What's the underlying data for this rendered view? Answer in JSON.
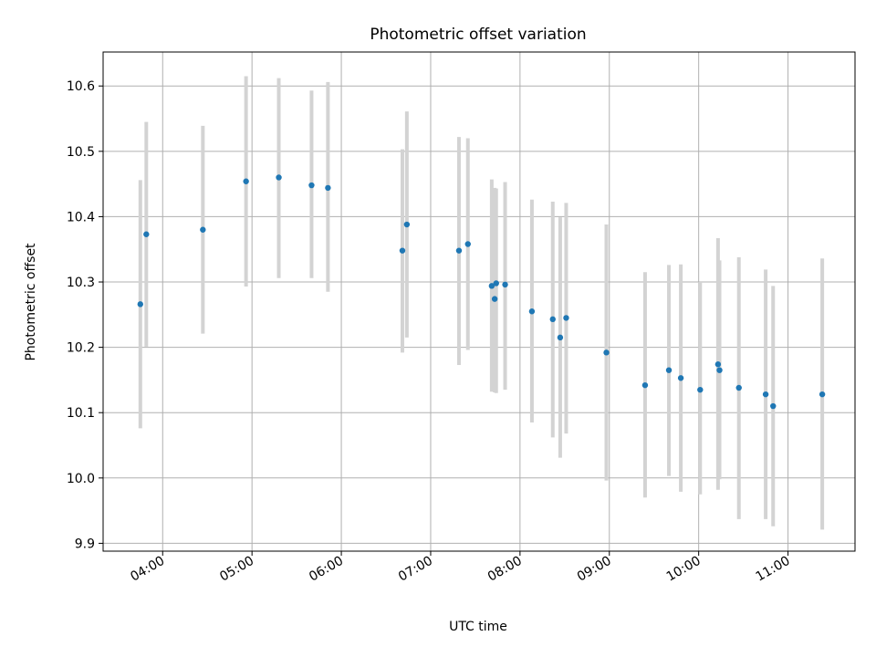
{
  "chart_data": {
    "type": "scatter",
    "title": "Photometric offset variation",
    "xlabel": "UTC time",
    "ylabel": "Photometric offset",
    "grid": true,
    "xlim": [
      "03:20",
      "11:45"
    ],
    "ylim": [
      9.888,
      10.652
    ],
    "xticks": [
      "04:00",
      "05:00",
      "06:00",
      "07:00",
      "08:00",
      "09:00",
      "10:00",
      "11:00"
    ],
    "yticks": [
      9.9,
      10.0,
      10.1,
      10.2,
      10.3,
      10.4,
      10.5,
      10.6
    ],
    "error_bar_color": "#d3d3d3",
    "point_color": "#1f77b4",
    "points": [
      {
        "x": "03:45",
        "y": 10.266,
        "ylow": 10.076,
        "yhigh": 10.456
      },
      {
        "x": "03:49",
        "y": 10.373,
        "ylow": 10.201,
        "yhigh": 10.545
      },
      {
        "x": "04:27",
        "y": 10.38,
        "ylow": 10.221,
        "yhigh": 10.539
      },
      {
        "x": "04:56",
        "y": 10.454,
        "ylow": 10.293,
        "yhigh": 10.615
      },
      {
        "x": "05:18",
        "y": 10.46,
        "ylow": 10.306,
        "yhigh": 10.612
      },
      {
        "x": "05:40",
        "y": 10.448,
        "ylow": 10.306,
        "yhigh": 10.593
      },
      {
        "x": "05:51",
        "y": 10.444,
        "ylow": 10.285,
        "yhigh": 10.606
      },
      {
        "x": "06:41",
        "y": 10.348,
        "ylow": 10.192,
        "yhigh": 10.503
      },
      {
        "x": "06:44",
        "y": 10.388,
        "ylow": 10.215,
        "yhigh": 10.561
      },
      {
        "x": "07:19",
        "y": 10.348,
        "ylow": 10.173,
        "yhigh": 10.522
      },
      {
        "x": "07:25",
        "y": 10.358,
        "ylow": 10.196,
        "yhigh": 10.52
      },
      {
        "x": "07:41",
        "y": 10.294,
        "ylow": 10.132,
        "yhigh": 10.457
      },
      {
        "x": "07:43",
        "y": 10.274,
        "ylow": 10.131,
        "yhigh": 10.444
      },
      {
        "x": "07:44",
        "y": 10.298,
        "ylow": 10.13,
        "yhigh": 10.443
      },
      {
        "x": "07:50",
        "y": 10.296,
        "ylow": 10.135,
        "yhigh": 10.453
      },
      {
        "x": "08:08",
        "y": 10.255,
        "ylow": 10.085,
        "yhigh": 10.426
      },
      {
        "x": "08:22",
        "y": 10.243,
        "ylow": 10.062,
        "yhigh": 10.423
      },
      {
        "x": "08:27",
        "y": 10.215,
        "ylow": 10.031,
        "yhigh": 10.399
      },
      {
        "x": "08:31",
        "y": 10.245,
        "ylow": 10.068,
        "yhigh": 10.421
      },
      {
        "x": "08:58",
        "y": 10.192,
        "ylow": 9.996,
        "yhigh": 10.388
      },
      {
        "x": "09:24",
        "y": 10.142,
        "ylow": 9.97,
        "yhigh": 10.315
      },
      {
        "x": "09:40",
        "y": 10.165,
        "ylow": 10.003,
        "yhigh": 10.326
      },
      {
        "x": "09:48",
        "y": 10.153,
        "ylow": 9.979,
        "yhigh": 10.327
      },
      {
        "x": "10:01",
        "y": 10.135,
        "ylow": 9.975,
        "yhigh": 10.3
      },
      {
        "x": "10:13",
        "y": 10.174,
        "ylow": 9.982,
        "yhigh": 10.367
      },
      {
        "x": "10:14",
        "y": 10.165,
        "ylow": 9.998,
        "yhigh": 10.333
      },
      {
        "x": "10:27",
        "y": 10.138,
        "ylow": 9.937,
        "yhigh": 10.338
      },
      {
        "x": "10:45",
        "y": 10.128,
        "ylow": 9.937,
        "yhigh": 10.319
      },
      {
        "x": "10:50",
        "y": 10.11,
        "ylow": 9.926,
        "yhigh": 10.294
      },
      {
        "x": "11:23",
        "y": 10.128,
        "ylow": 9.921,
        "yhigh": 10.336
      }
    ]
  }
}
